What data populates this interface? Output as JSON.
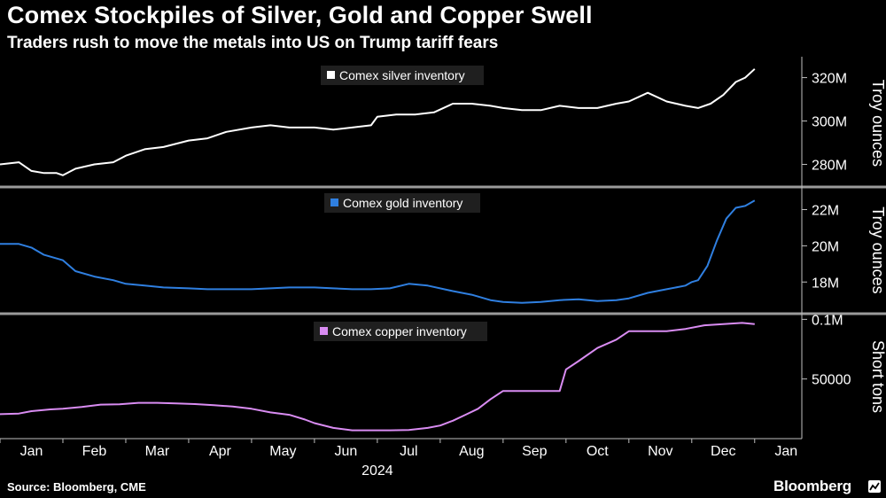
{
  "header": {
    "title": "Comex Stockpiles of Silver, Gold and Copper Swell",
    "subtitle": "Traders rush to move the metals into US on Trump tariff fears"
  },
  "footer": {
    "source": "Source: Bloomberg, CME",
    "brand": "Bloomberg",
    "brand_icon": "bloomberg-chart-icon"
  },
  "colors": {
    "background": "#000000",
    "silver": "#ffffff",
    "gold": "#2f7fe0",
    "copper": "#d98cf2",
    "axis": "#bfbfbf",
    "legend_bg": "#1f1f1f"
  },
  "chart_data": {
    "type": "line",
    "x_axis": {
      "months": [
        "Jan",
        "Feb",
        "Mar",
        "Apr",
        "May",
        "Jun",
        "Jul",
        "Aug",
        "Sep",
        "Oct",
        "Nov",
        "Dec",
        "Jan"
      ],
      "year_label": "2024",
      "domain": [
        0,
        12.75
      ]
    },
    "panels": [
      {
        "name": "silver",
        "legend": "Comex silver inventory",
        "unit_label": "Troy ounces",
        "ylim": [
          270,
          328
        ],
        "ticks": [
          280,
          300,
          320
        ],
        "tick_labels": [
          "280M",
          "300M",
          "320M"
        ],
        "series": {
          "name": "Comex silver inventory",
          "x": [
            0,
            0.3,
            0.5,
            0.7,
            0.9,
            1.0,
            1.2,
            1.5,
            1.8,
            2.0,
            2.3,
            2.6,
            3.0,
            3.3,
            3.6,
            4.0,
            4.3,
            4.6,
            5.0,
            5.3,
            5.6,
            5.9,
            6.0,
            6.3,
            6.6,
            6.9,
            7.2,
            7.5,
            7.8,
            8.0,
            8.3,
            8.6,
            8.9,
            9.2,
            9.5,
            9.8,
            10.0,
            10.3,
            10.6,
            10.9,
            11.1,
            11.3,
            11.5,
            11.7,
            11.85,
            12.0
          ],
          "values": [
            280,
            281,
            277,
            276,
            276,
            275,
            278,
            280,
            281,
            284,
            287,
            288,
            291,
            292,
            295,
            297,
            298,
            297,
            297,
            296,
            297,
            298,
            302,
            303,
            303,
            304,
            308,
            308,
            307,
            306,
            305,
            305,
            307,
            306,
            306,
            308,
            309,
            313,
            309,
            307,
            306,
            308,
            312,
            318,
            320,
            324
          ]
        }
      },
      {
        "name": "gold",
        "legend": "Comex gold inventory",
        "unit_label": "Troy ounces",
        "ylim": [
          16.3,
          23.2
        ],
        "ticks": [
          18,
          20,
          22
        ],
        "tick_labels": [
          "18M",
          "20M",
          "22M"
        ],
        "series": {
          "name": "Comex gold inventory",
          "x": [
            0,
            0.3,
            0.5,
            0.7,
            1.0,
            1.2,
            1.5,
            1.8,
            2.0,
            2.3,
            2.6,
            3.0,
            3.3,
            3.6,
            4.0,
            4.3,
            4.6,
            5.0,
            5.3,
            5.6,
            5.9,
            6.2,
            6.5,
            6.8,
            7.2,
            7.5,
            7.8,
            8.0,
            8.3,
            8.6,
            8.9,
            9.2,
            9.5,
            9.8,
            10.0,
            10.3,
            10.6,
            10.9,
            11.0,
            11.1,
            11.25,
            11.4,
            11.55,
            11.7,
            11.85,
            12.0
          ],
          "values": [
            20.1,
            20.1,
            19.9,
            19.5,
            19.2,
            18.6,
            18.3,
            18.1,
            17.9,
            17.8,
            17.7,
            17.65,
            17.6,
            17.6,
            17.6,
            17.65,
            17.7,
            17.7,
            17.65,
            17.6,
            17.6,
            17.65,
            17.9,
            17.8,
            17.5,
            17.3,
            17.0,
            16.9,
            16.85,
            16.9,
            17.0,
            17.05,
            16.95,
            17.0,
            17.1,
            17.4,
            17.6,
            17.8,
            18.0,
            18.1,
            18.9,
            20.3,
            21.5,
            22.1,
            22.2,
            22.5
          ]
        }
      },
      {
        "name": "copper",
        "legend": "Comex copper inventory",
        "unit_label": "Short tons",
        "ylim": [
          0,
          104000
        ],
        "ticks": [
          50000,
          100000
        ],
        "tick_labels": [
          "50000",
          "0.1M"
        ],
        "series": {
          "name": "Comex copper inventory",
          "x": [
            0,
            0.3,
            0.5,
            0.8,
            1.0,
            1.3,
            1.6,
            1.9,
            2.2,
            2.5,
            2.8,
            3.1,
            3.4,
            3.7,
            4.0,
            4.3,
            4.6,
            4.85,
            5.0,
            5.3,
            5.6,
            5.9,
            6.2,
            6.5,
            6.8,
            7.0,
            7.2,
            7.4,
            7.6,
            7.8,
            8.0,
            8.3,
            8.6,
            8.9,
            9.0,
            9.2,
            9.5,
            9.8,
            10.0,
            10.3,
            10.6,
            10.9,
            11.2,
            11.5,
            11.8,
            12.0
          ],
          "values": [
            20500,
            21000,
            23000,
            24500,
            25000,
            26500,
            28500,
            28800,
            30000,
            30000,
            29500,
            29000,
            28000,
            27000,
            25000,
            22000,
            20000,
            16000,
            13000,
            9000,
            7000,
            7000,
            7000,
            7200,
            9000,
            11000,
            15000,
            20000,
            25000,
            33000,
            40000,
            40000,
            40000,
            40000,
            58000,
            65000,
            76000,
            83000,
            90000,
            90000,
            90000,
            92000,
            95000,
            96000,
            97000,
            96000
          ]
        }
      }
    ]
  }
}
